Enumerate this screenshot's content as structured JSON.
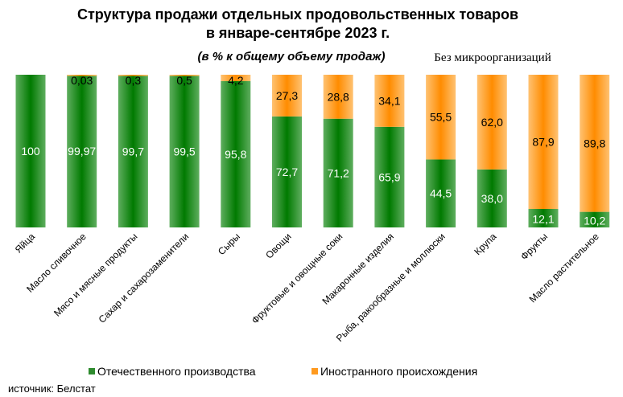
{
  "chart_data": {
    "type": "bar",
    "stacked": true,
    "title": "Структура продажи отдельных продовольственных товаров",
    "title_line2": "в январе-сентябре 2023 г.",
    "subtitle": "(в % к общему объему продаж)",
    "note": "Без микроорганизаций",
    "source": "источник: Белстат",
    "categories": [
      "Яйца",
      "Масло сливочное",
      "Мясо и мясные продукты",
      "Сахар и сахарозаменители",
      "Сыры",
      "Овощи",
      "Фруктовые и овощные соки",
      "Макаронные изделия",
      "Рыба, ракообразные и моллюски",
      "Крупа",
      "Фрукты",
      "Масло растительное"
    ],
    "series": [
      {
        "name": "Отечественного производства",
        "color": "#2e8b2e",
        "values": [
          100,
          99.97,
          99.7,
          99.5,
          95.8,
          72.7,
          71.2,
          65.9,
          44.5,
          38.0,
          12.1,
          10.2
        ],
        "labels": [
          "100",
          "99,97",
          "99,7",
          "99,5",
          "95,8",
          "72,7",
          "71,2",
          "65,9",
          "44,5",
          "38,0",
          "12,1",
          "10,2"
        ]
      },
      {
        "name": "Иностранного происхождения",
        "color": "#ff9a1f",
        "values": [
          0,
          0.03,
          0.3,
          0.5,
          4.2,
          27.3,
          28.8,
          34.1,
          55.5,
          62.0,
          87.9,
          89.8
        ],
        "labels": [
          "",
          "0,03",
          "0,3",
          "0,5",
          "4,2",
          "27,3",
          "28,8",
          "34,1",
          "55,5",
          "62,0",
          "87,9",
          "89,8"
        ]
      }
    ],
    "ylim": [
      0,
      100
    ],
    "grid": false,
    "legend_position": "bottom"
  }
}
